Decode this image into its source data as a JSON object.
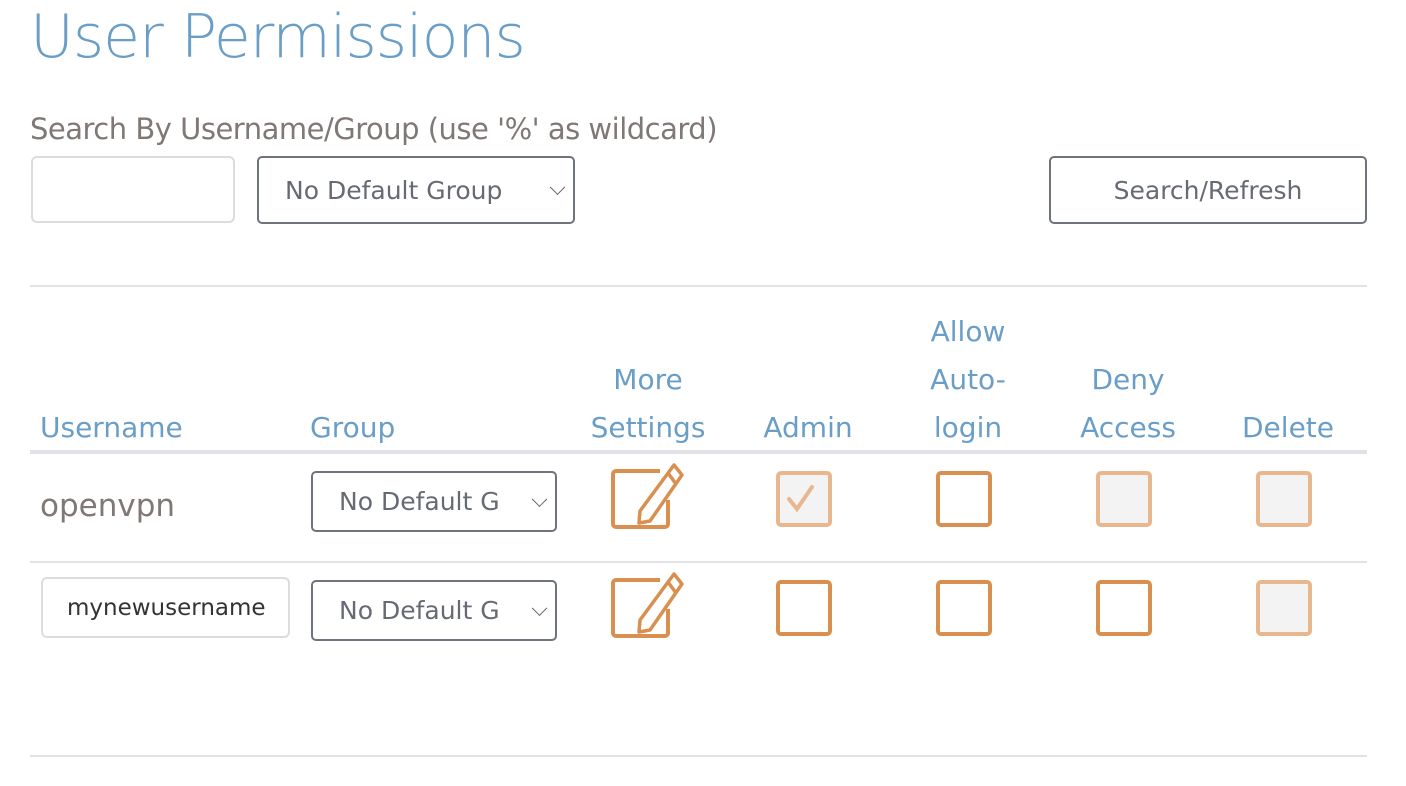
{
  "page_title": "User Permissions",
  "search": {
    "label": "Search By Username/Group (use '%' as wildcard)",
    "input_value": "",
    "group_select": "No Default Group",
    "button": "Search/Refresh"
  },
  "table": {
    "headers": {
      "username": "Username",
      "group": "Group",
      "more_settings": "More Settings",
      "admin": "Admin",
      "allow_autologin": "Allow Auto-login",
      "deny_access": "Deny Access",
      "delete": "Delete"
    },
    "rows": [
      {
        "username": "openvpn",
        "group": "No Default G",
        "admin": true,
        "admin_disabled": true,
        "allow_autologin": false,
        "deny_access": false,
        "deny_disabled": true,
        "delete": false,
        "delete_disabled": true
      },
      {
        "username": "mynewusername",
        "group": "No Default G",
        "admin": false,
        "allow_autologin": false,
        "deny_access": false,
        "delete": false,
        "delete_disabled": true
      }
    ]
  },
  "colors": {
    "title": "#6a9ec7",
    "accent": "#d98f4f",
    "accent_disabled": "#e8b78e"
  }
}
